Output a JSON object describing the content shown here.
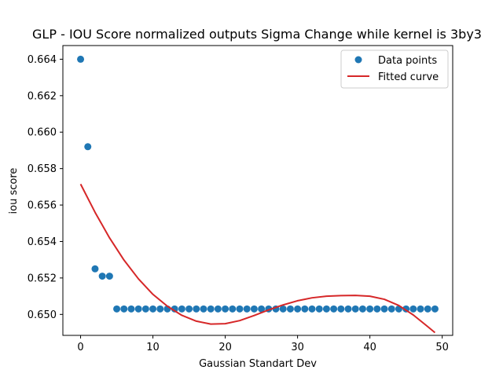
{
  "chart_data": {
    "type": "scatter",
    "title": "GLP - IOU Score normalized outputs Sigma Change while kernel is 3by3",
    "xlabel": "Gaussian Standart Dev",
    "ylabel": "iou score",
    "xlim": [
      -2.45,
      51.45
    ],
    "ylim": [
      0.64885,
      0.66475
    ],
    "xticks": [
      0,
      10,
      20,
      30,
      40,
      50
    ],
    "yticks": [
      0.65,
      0.652,
      0.654,
      0.656,
      0.658,
      0.66,
      0.662,
      0.664
    ],
    "ytick_labels": [
      "0.650",
      "0.652",
      "0.654",
      "0.656",
      "0.658",
      "0.660",
      "0.662",
      "0.664"
    ],
    "legend_position": "upper right",
    "series": [
      {
        "name": "Data points",
        "kind": "scatter",
        "color": "#1f77b4",
        "x": [
          0,
          1,
          2,
          3,
          4,
          5,
          6,
          7,
          8,
          9,
          10,
          11,
          12,
          13,
          14,
          15,
          16,
          17,
          18,
          19,
          20,
          21,
          22,
          23,
          24,
          25,
          26,
          27,
          28,
          29,
          30,
          31,
          32,
          33,
          34,
          35,
          36,
          37,
          38,
          39,
          40,
          41,
          42,
          43,
          44,
          45,
          46,
          47,
          48,
          49
        ],
        "y": [
          0.664,
          0.6592,
          0.6525,
          0.6521,
          0.6521,
          0.6503,
          0.6503,
          0.6503,
          0.6503,
          0.6503,
          0.6503,
          0.6503,
          0.6503,
          0.6503,
          0.6503,
          0.6503,
          0.6503,
          0.6503,
          0.6503,
          0.6503,
          0.6503,
          0.6503,
          0.6503,
          0.6503,
          0.6503,
          0.6503,
          0.6503,
          0.6503,
          0.6503,
          0.6503,
          0.6503,
          0.6503,
          0.6503,
          0.6503,
          0.6503,
          0.6503,
          0.6503,
          0.6503,
          0.6503,
          0.6503,
          0.6503,
          0.6503,
          0.6503,
          0.6503,
          0.6503,
          0.6503,
          0.6503,
          0.6503,
          0.6503,
          0.6503
        ]
      },
      {
        "name": "Fitted curve",
        "kind": "line",
        "color": "#d62728",
        "x": [
          0,
          2,
          4,
          6,
          8,
          10,
          12,
          14,
          16,
          18,
          20,
          22,
          24,
          26,
          28,
          30,
          32,
          34,
          36,
          38,
          40,
          42,
          44,
          46,
          48,
          49
        ],
        "y": [
          0.65715,
          0.6556,
          0.6542,
          0.65298,
          0.65195,
          0.6511,
          0.65045,
          0.64995,
          0.64963,
          0.64947,
          0.64949,
          0.64966,
          0.64994,
          0.65025,
          0.65052,
          0.65075,
          0.65091,
          0.651,
          0.65103,
          0.65104,
          0.651,
          0.65083,
          0.65049,
          0.64997,
          0.64933,
          0.649
        ]
      }
    ]
  }
}
